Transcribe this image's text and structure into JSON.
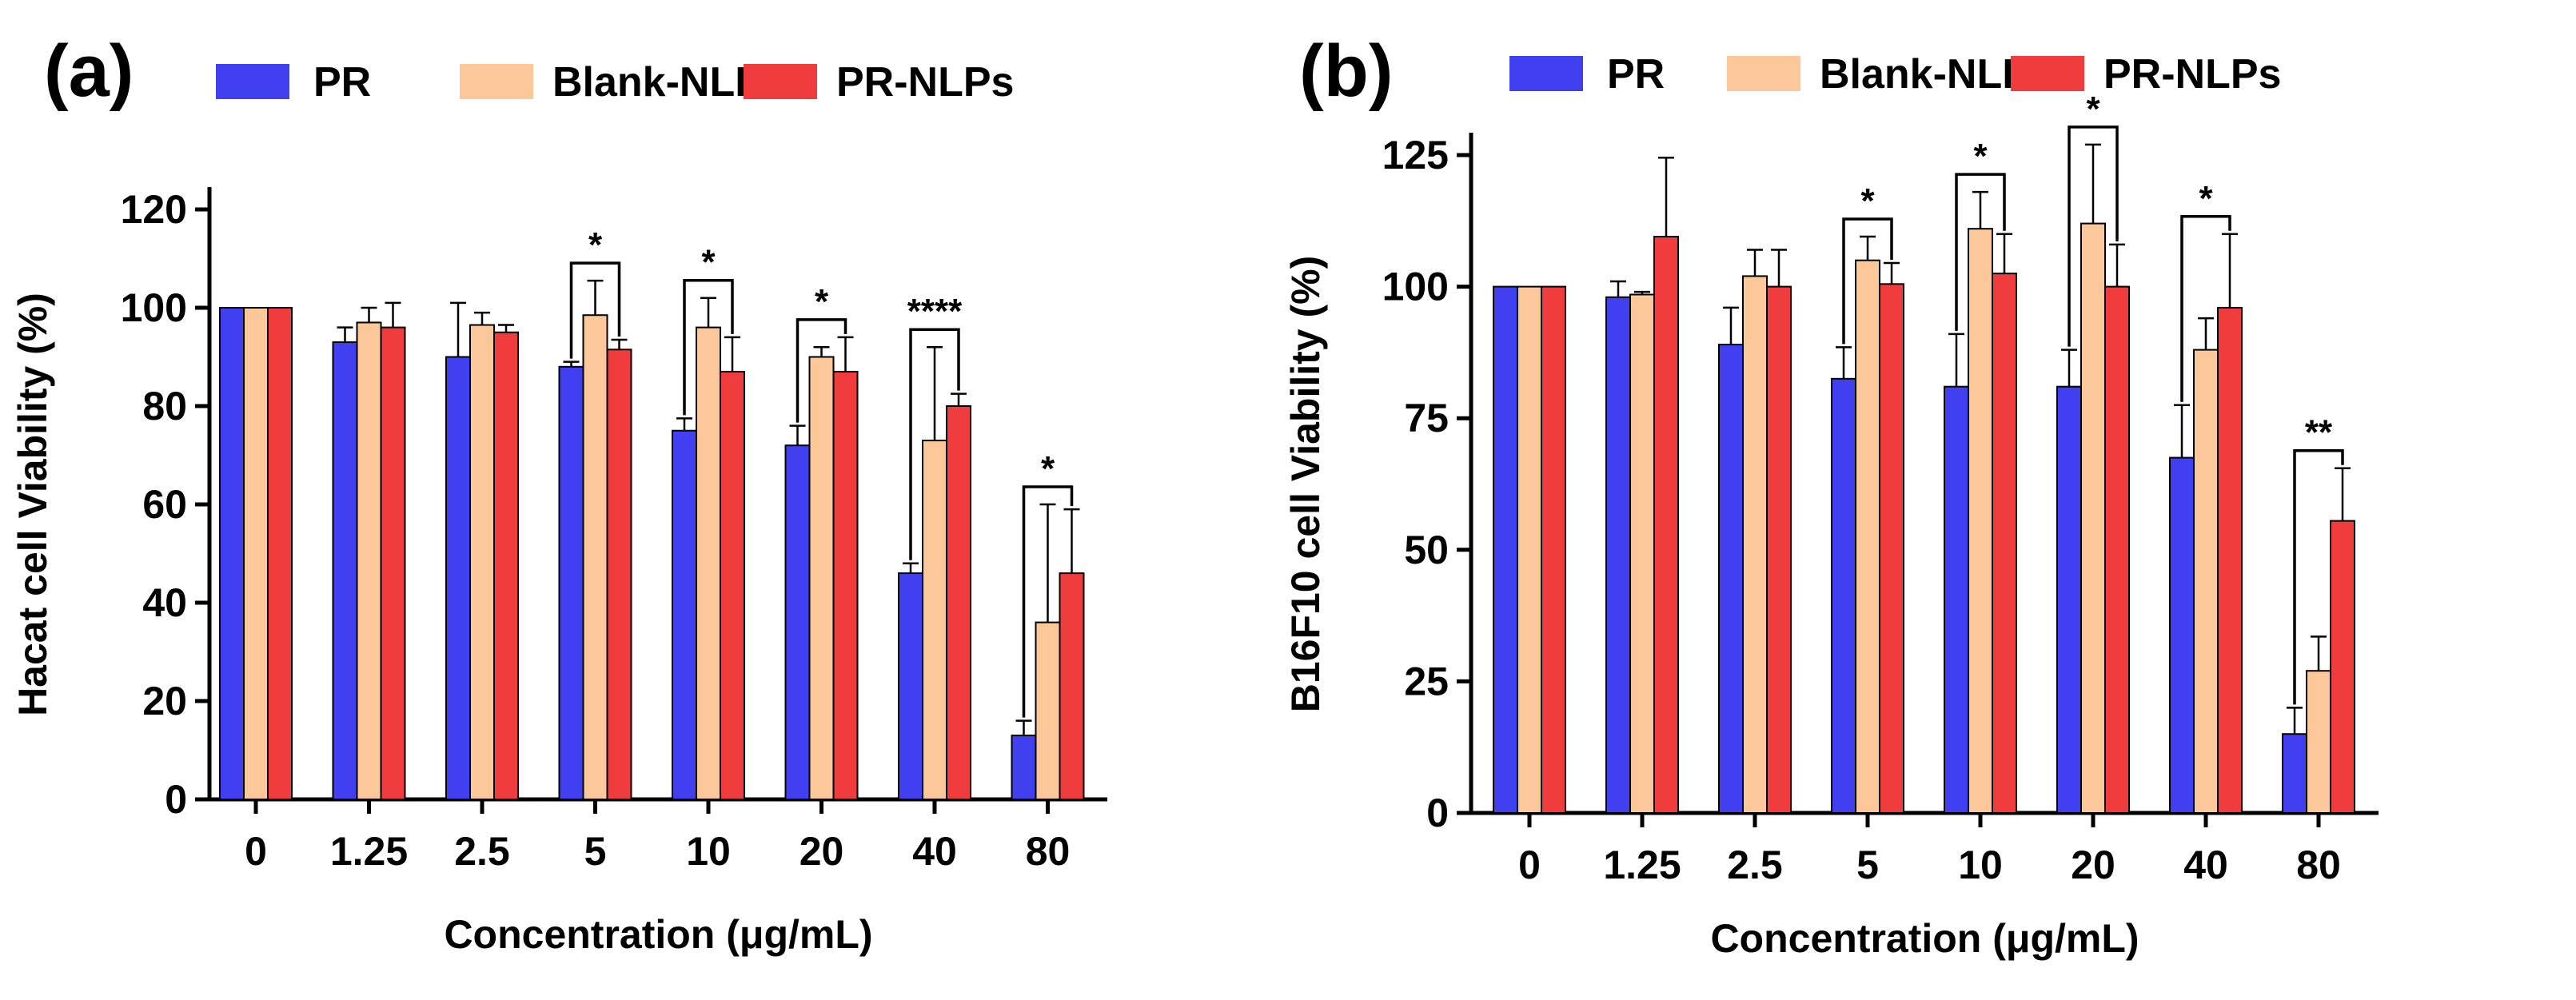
{
  "chart_data": [
    {
      "type": "bar",
      "panel_label": "(a)",
      "categories": [
        "0",
        "1.25",
        "2.5",
        "5",
        "10",
        "20",
        "40",
        "80"
      ],
      "series": [
        {
          "name": "PR",
          "color": "#4040f0",
          "values": [
            100,
            93,
            90,
            88,
            75,
            72,
            46,
            13
          ],
          "errors": [
            0,
            3,
            11,
            1,
            2.5,
            4,
            2,
            3
          ]
        },
        {
          "name": "Blank-NLPs",
          "color": "#fcc89a",
          "values": [
            100,
            97,
            96.5,
            98.5,
            96,
            90,
            73,
            36
          ],
          "errors": [
            0,
            3,
            2.5,
            7,
            6,
            2,
            19,
            24
          ]
        },
        {
          "name": "PR-NLPs",
          "color": "#f03c3c",
          "values": [
            100,
            96,
            95,
            91.5,
            87,
            87,
            80,
            46
          ],
          "errors": [
            0,
            5,
            1.5,
            2,
            7,
            7,
            2.5,
            13
          ]
        }
      ],
      "xlabel": "Concentration (μg/mL)",
      "ylabel": "Hacat cell Viability (%)",
      "ylim": [
        0,
        120
      ],
      "yticks": [
        "0",
        "20",
        "40",
        "60",
        "80",
        "100",
        "120"
      ],
      "grid": false,
      "legend_position": "top",
      "significance": [
        {
          "category": "5",
          "from": "PR",
          "to": "PR-NLPs",
          "label": "*"
        },
        {
          "category": "10",
          "from": "PR",
          "to": "PR-NLPs",
          "label": "*"
        },
        {
          "category": "20",
          "from": "PR",
          "to": "PR-NLPs",
          "label": "*"
        },
        {
          "category": "40",
          "from": "PR",
          "to": "PR-NLPs",
          "label": "****"
        },
        {
          "category": "80",
          "from": "PR",
          "to": "PR-NLPs",
          "label": "*"
        }
      ]
    },
    {
      "type": "bar",
      "panel_label": "(b)",
      "categories": [
        "0",
        "1.25",
        "2.5",
        "5",
        "10",
        "20",
        "40",
        "80"
      ],
      "series": [
        {
          "name": "PR",
          "color": "#4040f0",
          "values": [
            100,
            98,
            89,
            82.5,
            81,
            81,
            67.5,
            15
          ],
          "errors": [
            0,
            3,
            7,
            6,
            10,
            7,
            10,
            5
          ]
        },
        {
          "name": "Blank-NLPs",
          "color": "#fcc89a",
          "values": [
            100,
            98.5,
            102,
            105,
            111,
            112,
            88,
            27
          ],
          "errors": [
            0,
            0.5,
            5,
            4.5,
            7,
            15,
            6,
            6.5
          ]
        },
        {
          "name": "PR-NLPs",
          "color": "#f03c3c",
          "values": [
            100,
            109.5,
            100,
            100.5,
            102.5,
            100,
            96,
            55.5
          ],
          "errors": [
            0,
            15,
            7,
            4,
            7.5,
            8,
            14,
            10
          ]
        }
      ],
      "xlabel": "Concentration (μg/mL)",
      "ylabel": "B16F10 cell Viability (%)",
      "ylim": [
        0,
        125
      ],
      "yticks": [
        "0",
        "25",
        "50",
        "75",
        "100",
        "125"
      ],
      "grid": false,
      "legend_position": "top",
      "significance": [
        {
          "category": "5",
          "from": "PR",
          "to": "PR-NLPs",
          "label": "*"
        },
        {
          "category": "10",
          "from": "PR",
          "to": "PR-NLPs",
          "label": "*"
        },
        {
          "category": "20",
          "from": "PR",
          "to": "PR-NLPs",
          "label": "*"
        },
        {
          "category": "40",
          "from": "PR",
          "to": "PR-NLPs",
          "label": "*"
        },
        {
          "category": "80",
          "from": "PR",
          "to": "PR-NLPs",
          "label": "**"
        }
      ]
    }
  ]
}
